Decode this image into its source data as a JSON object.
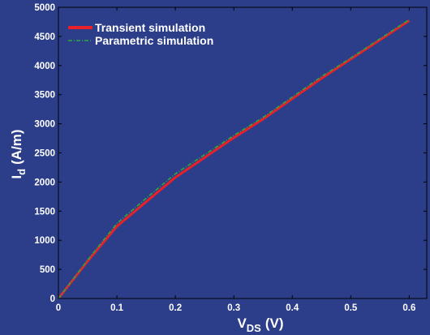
{
  "chart_data": {
    "type": "line",
    "xlabel_main": "V",
    "xlabel_sub": "DS",
    "xlabel_unit": "(V)",
    "ylabel_main": "I",
    "ylabel_sub": "d",
    "ylabel_unit": "(A/m)",
    "xlim": [
      0,
      0.63
    ],
    "ylim": [
      0,
      5000
    ],
    "x_ticks": [
      0,
      0.1,
      0.2,
      0.3,
      0.4,
      0.5,
      0.6
    ],
    "x_tick_labels": [
      "0",
      "0.1",
      "0.2",
      "0.3",
      "0.4",
      "0.5",
      "0.6"
    ],
    "y_ticks": [
      0,
      500,
      1000,
      1500,
      2000,
      2500,
      3000,
      3500,
      4000,
      4500,
      5000
    ],
    "y_tick_labels": [
      "0",
      "500",
      "1000",
      "1500",
      "2000",
      "2500",
      "3000",
      "3500",
      "4000",
      "4500",
      "5000"
    ],
    "grid": false,
    "legend_position": "top-left",
    "background_color": "#2c3e8a",
    "series": [
      {
        "name": "Transient simulation",
        "color": "#e8202a",
        "style": "solid",
        "x": [
          0,
          0.05,
          0.1,
          0.15,
          0.2,
          0.25,
          0.3,
          0.35,
          0.4,
          0.45,
          0.5,
          0.55,
          0.6
        ],
        "y": [
          0,
          640,
          1240,
          1660,
          2080,
          2420,
          2760,
          3080,
          3430,
          3780,
          4110,
          4440,
          4770
        ]
      },
      {
        "name": "Parametric simulation",
        "color": "#2ea83e",
        "style": "dashdot",
        "x": [
          0,
          0.05,
          0.1,
          0.15,
          0.2,
          0.25,
          0.3,
          0.35,
          0.4,
          0.45,
          0.5,
          0.55,
          0.6
        ],
        "y": [
          0,
          660,
          1290,
          1720,
          2140,
          2470,
          2800,
          3110,
          3460,
          3810,
          4130,
          4460,
          4790
        ]
      }
    ]
  }
}
